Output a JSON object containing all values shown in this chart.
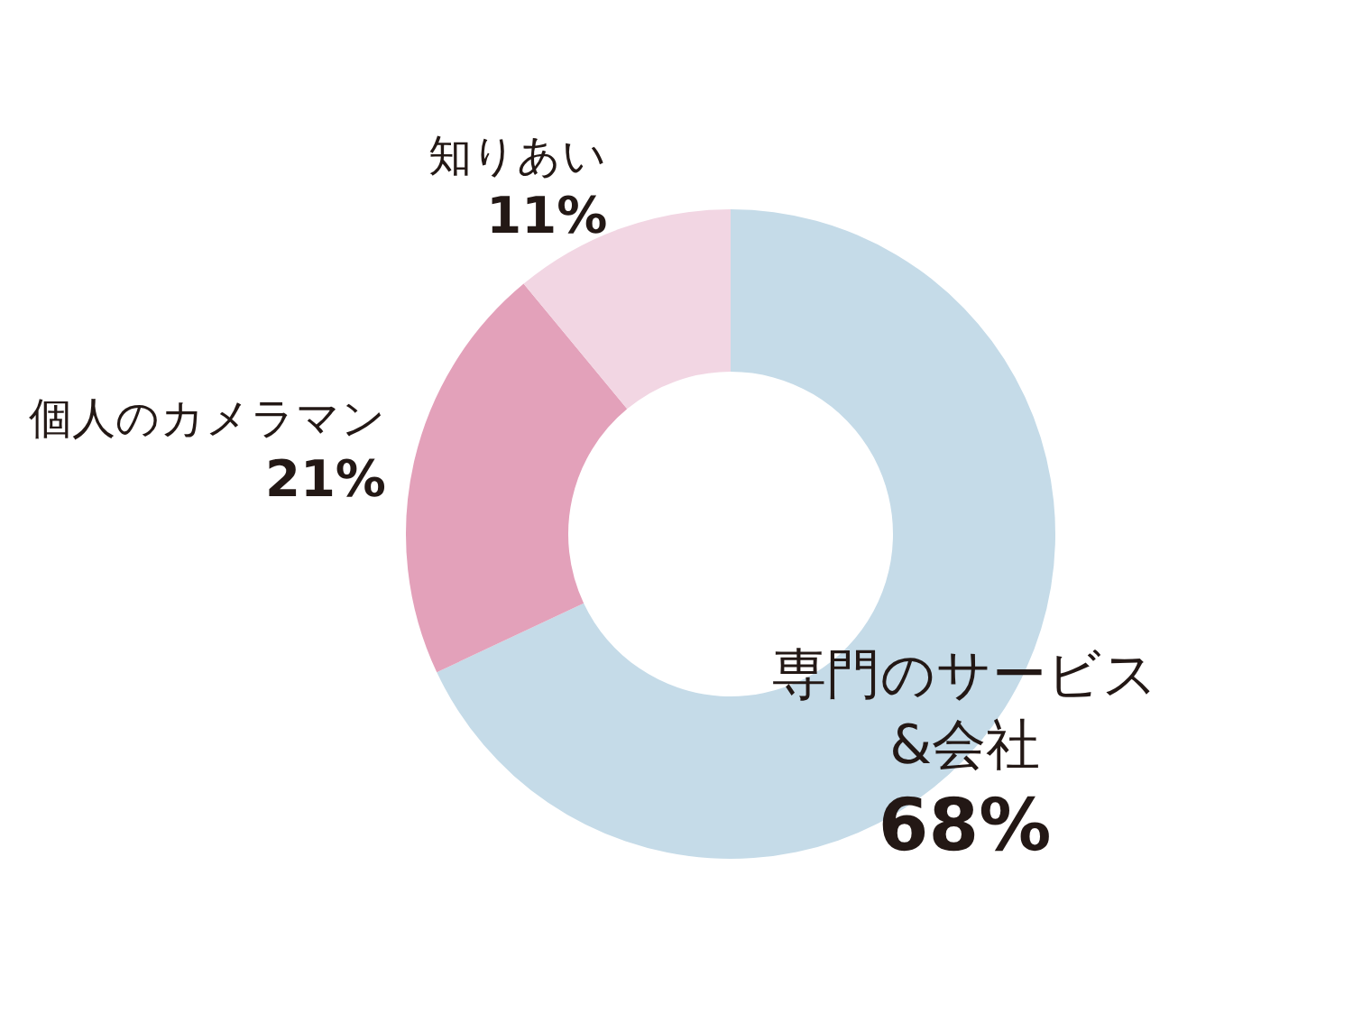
{
  "chart_data": {
    "type": "donut",
    "categories": [
      "専門のサービス&会社",
      "個人のカメラマン",
      "知りあい"
    ],
    "values": [
      68,
      21,
      11
    ],
    "colors": [
      "#c5dbe8",
      "#e3a1ba",
      "#f2d6e3"
    ],
    "value_labels": [
      "68%",
      "21%",
      "11%"
    ],
    "legend": false
  }
}
